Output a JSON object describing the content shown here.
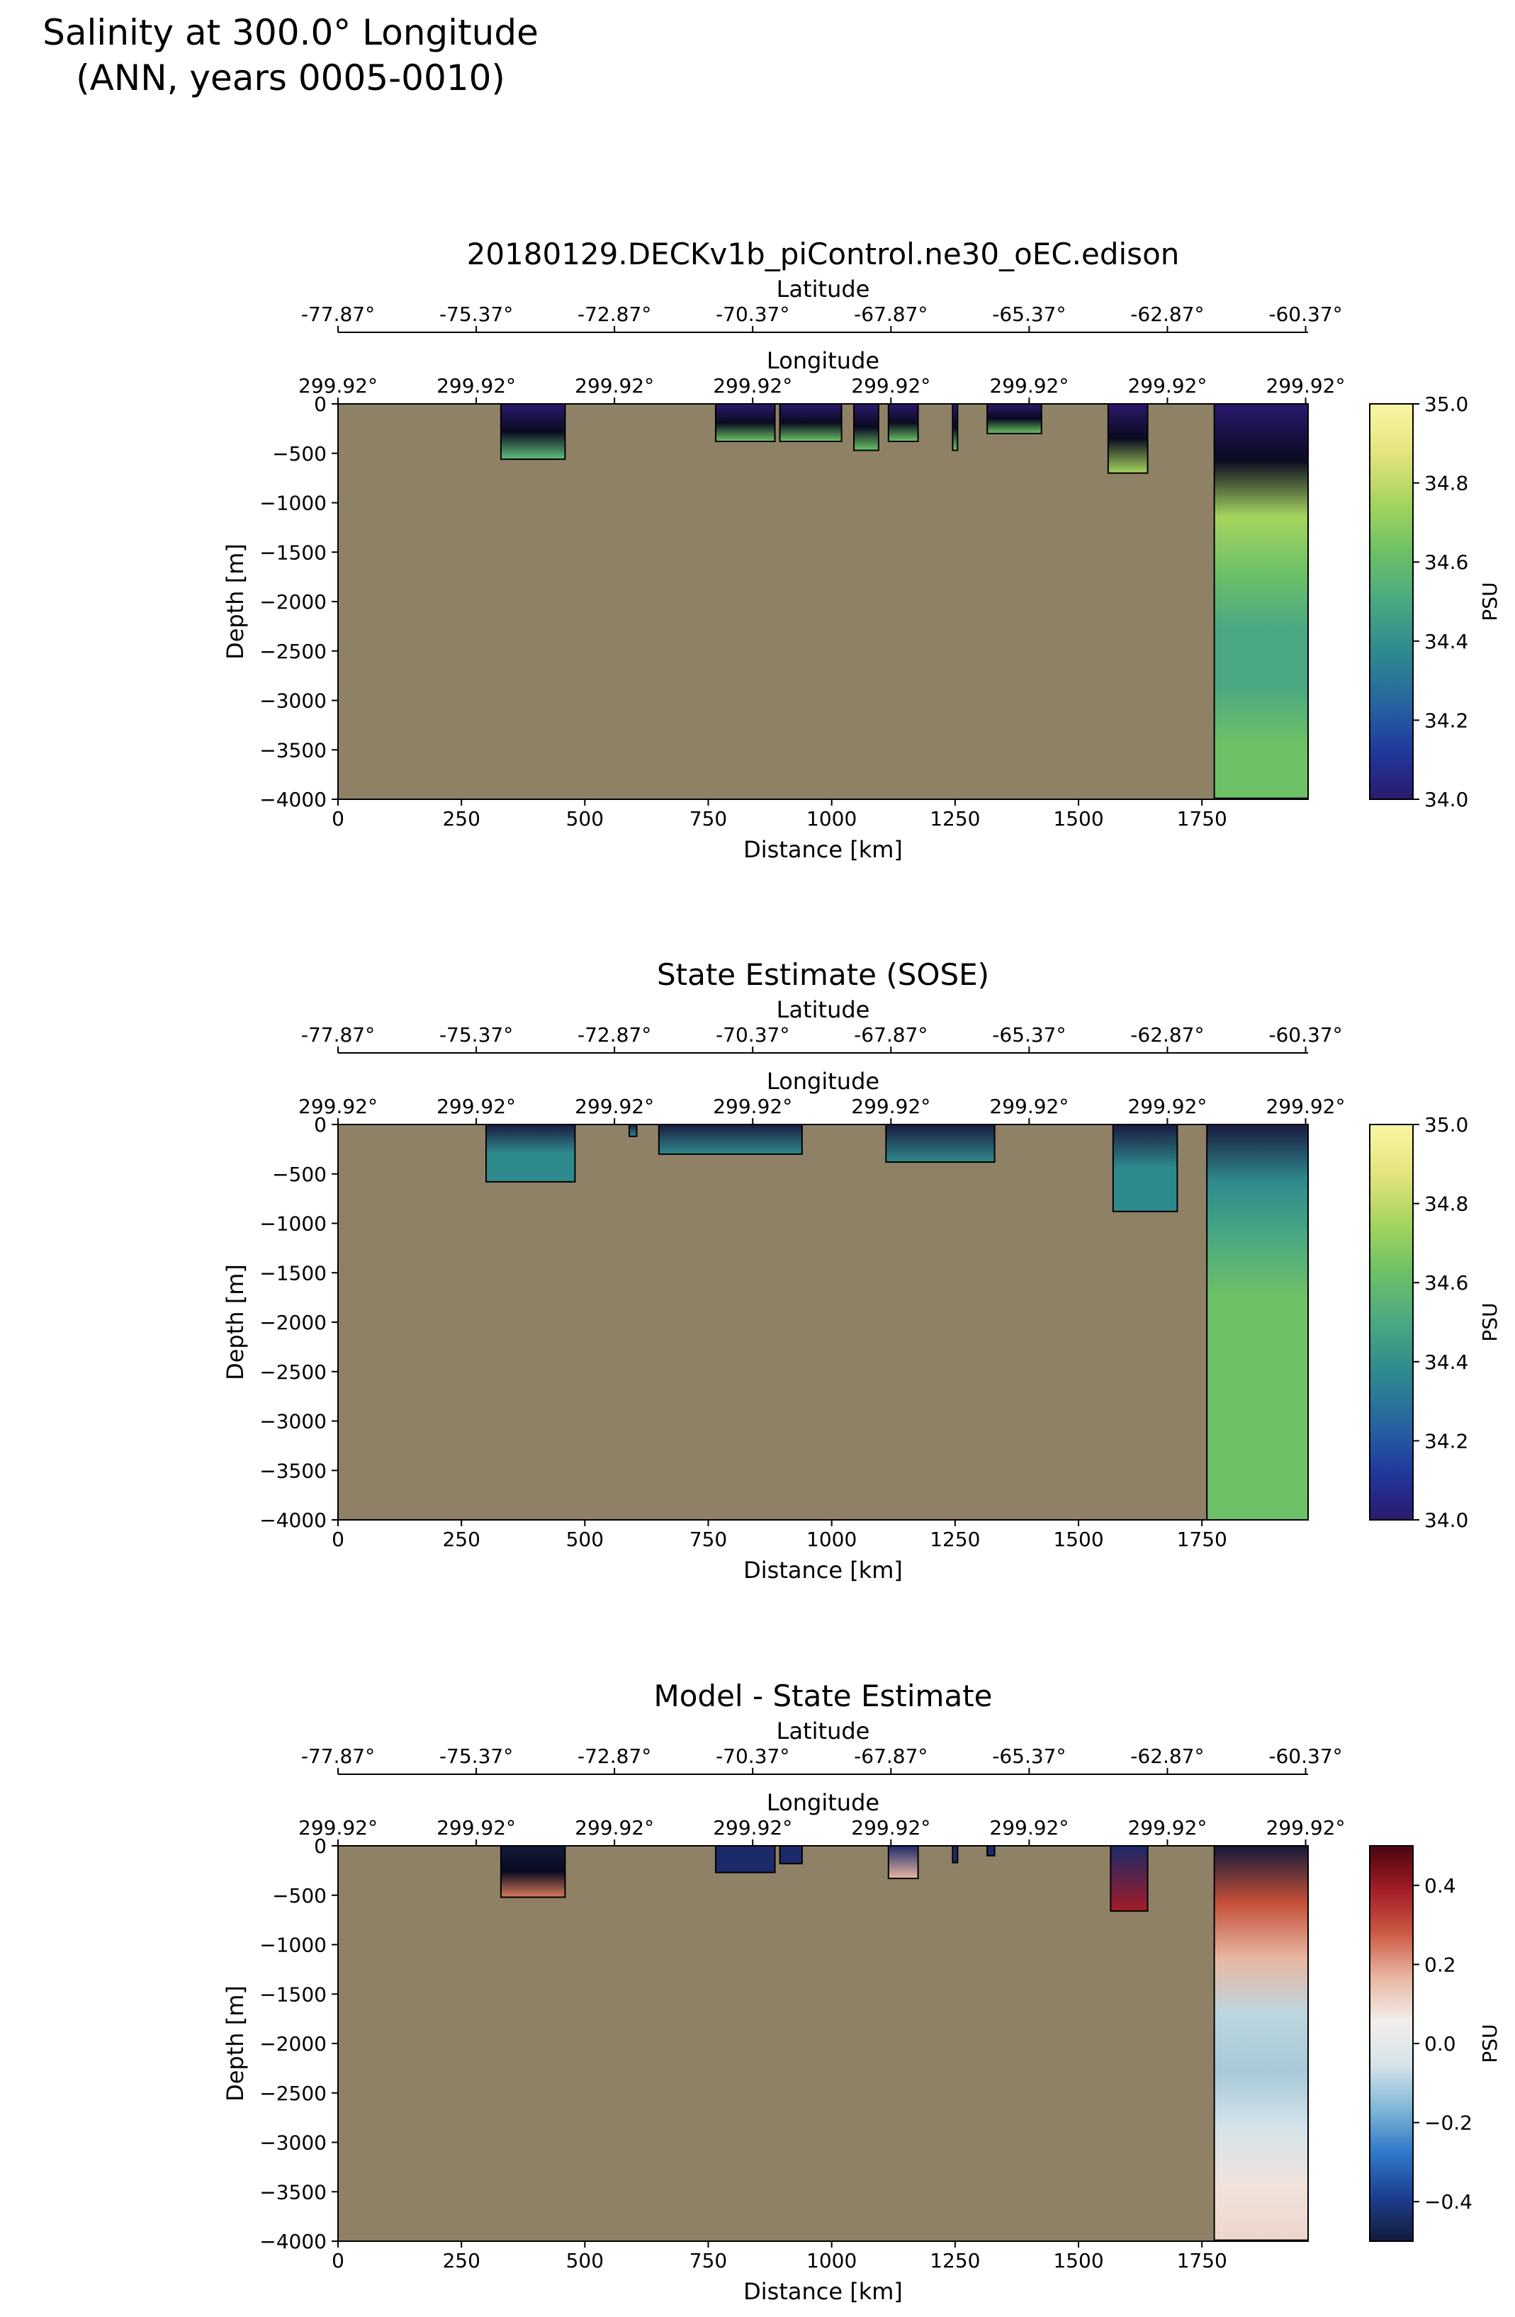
{
  "figure": {
    "title_line1": "Salinity at 300.0° Longitude",
    "title_line2": "(ANN, years 0005-0010)"
  },
  "colors": {
    "land": "#8f8166",
    "axis": "#000000"
  },
  "chart_data": [
    {
      "type": "heatmap",
      "panel": "model",
      "title": "20180129.DECKv1b_piControl.ne30_oEC.edison",
      "xlabel": "Distance [km]",
      "ylabel": "Depth [m]",
      "xlim": [
        0,
        1965
      ],
      "ylim": [
        -4000,
        0
      ],
      "xticks": [
        0,
        250,
        500,
        750,
        1000,
        1250,
        1500,
        1750
      ],
      "yticks": [
        0,
        -500,
        -1000,
        -1500,
        -2000,
        -2500,
        -3000,
        -3500,
        -4000
      ],
      "lat_axis_label": "Latitude",
      "lat_ticks": [
        "-77.87°",
        "-75.37°",
        "-72.87°",
        "-70.37°",
        "-67.87°",
        "-65.37°",
        "-62.87°",
        "-60.37°"
      ],
      "lat_tick_km": [
        0,
        280,
        560,
        840,
        1120,
        1400,
        1680,
        1960
      ],
      "lon_axis_label": "Longitude",
      "lon_ticks": [
        "299.92°",
        "299.92°",
        "299.92°",
        "299.92°",
        "299.92°",
        "299.92°",
        "299.92°",
        "299.92°"
      ],
      "colorbar": {
        "label": "PSU",
        "range": [
          34.0,
          35.0
        ],
        "ticks": [
          "35.0",
          "34.8",
          "34.6",
          "34.4",
          "34.2",
          "34.0"
        ],
        "tick_values": [
          35.0,
          34.8,
          34.6,
          34.4,
          34.2,
          34.0
        ],
        "stops": [
          "#2a1a6e",
          "#213a9e",
          "#2668a0",
          "#2f8a8e",
          "#4aa882",
          "#6cc066",
          "#a6d45e",
          "#e4e47e",
          "#fbf5a4"
        ]
      },
      "water_regions": [
        {
          "x": [
            330,
            460
          ],
          "depth": [
            0,
            560
          ],
          "colors": [
            "#2a1a6e",
            "#0a0a20",
            "#5fbf7c"
          ]
        },
        {
          "x": [
            765,
            885
          ],
          "depth": [
            0,
            380
          ],
          "colors": [
            "#2a1a6e",
            "#0a0a20",
            "#6cc466"
          ]
        },
        {
          "x": [
            895,
            1020
          ],
          "depth": [
            0,
            380
          ],
          "colors": [
            "#2a1a6e",
            "#0a0a20",
            "#6cc466"
          ]
        },
        {
          "x": [
            1045,
            1095
          ],
          "depth": [
            0,
            470
          ],
          "colors": [
            "#2a1a6e",
            "#0a0a20",
            "#6cc466"
          ]
        },
        {
          "x": [
            1115,
            1175
          ],
          "depth": [
            0,
            380
          ],
          "colors": [
            "#2a1a6e",
            "#0a0a20",
            "#6cc466"
          ]
        },
        {
          "x": [
            1245,
            1255
          ],
          "depth": [
            0,
            470
          ],
          "colors": [
            "#2a1a6e",
            "#0a0a20",
            "#6cc466"
          ]
        },
        {
          "x": [
            1315,
            1425
          ],
          "depth": [
            0,
            300
          ],
          "colors": [
            "#2a1a6e",
            "#0a0a20",
            "#6cc466"
          ]
        },
        {
          "x": [
            1560,
            1640
          ],
          "depth": [
            0,
            700
          ],
          "colors": [
            "#2a1a6e",
            "#0a0a20",
            "#a6d45e"
          ]
        },
        {
          "x": [
            1775,
            1965
          ],
          "depth": [
            0,
            3990
          ],
          "colors": [
            "#2a1a6e",
            "#0a0a20",
            "#a6d45e",
            "#6cc066",
            "#4aa882",
            "#4aa882",
            "#6cc066",
            "#6cc066"
          ]
        }
      ]
    },
    {
      "type": "heatmap",
      "panel": "obs",
      "title": "State Estimate (SOSE)",
      "xlabel": "Distance [km]",
      "ylabel": "Depth [m]",
      "xlim": [
        0,
        1965
      ],
      "ylim": [
        -4000,
        0
      ],
      "xticks": [
        0,
        250,
        500,
        750,
        1000,
        1250,
        1500,
        1750
      ],
      "yticks": [
        0,
        -500,
        -1000,
        -1500,
        -2000,
        -2500,
        -3000,
        -3500,
        -4000
      ],
      "lat_axis_label": "Latitude",
      "lat_ticks": [
        "-77.87°",
        "-75.37°",
        "-72.87°",
        "-70.37°",
        "-67.87°",
        "-65.37°",
        "-62.87°",
        "-60.37°"
      ],
      "lat_tick_km": [
        0,
        280,
        560,
        840,
        1120,
        1400,
        1680,
        1960
      ],
      "lon_axis_label": "Longitude",
      "lon_ticks": [
        "299.92°",
        "299.92°",
        "299.92°",
        "299.92°",
        "299.92°",
        "299.92°",
        "299.92°",
        "299.92°"
      ],
      "colorbar": {
        "label": "PSU",
        "range": [
          34.0,
          35.0
        ],
        "ticks": [
          "35.0",
          "34.8",
          "34.6",
          "34.4",
          "34.2",
          "34.0"
        ],
        "tick_values": [
          35.0,
          34.8,
          34.6,
          34.4,
          34.2,
          34.0
        ],
        "stops": [
          "#2a1a6e",
          "#213a9e",
          "#2668a0",
          "#2f8a8e",
          "#4aa882",
          "#6cc066",
          "#a6d45e",
          "#e4e47e",
          "#fbf5a4"
        ]
      },
      "water_regions": [
        {
          "x": [
            300,
            480
          ],
          "depth": [
            0,
            580
          ],
          "colors": [
            "#1a1a40",
            "#2f8a8e",
            "#2f8a8e"
          ]
        },
        {
          "x": [
            590,
            605
          ],
          "depth": [
            0,
            120
          ],
          "colors": [
            "#1a1a40",
            "#2f8a8e"
          ]
        },
        {
          "x": [
            650,
            940
          ],
          "depth": [
            0,
            300
          ],
          "colors": [
            "#1a1a40",
            "#2f8a8e"
          ]
        },
        {
          "x": [
            1110,
            1330
          ],
          "depth": [
            0,
            380
          ],
          "colors": [
            "#1a1a40",
            "#2f8a8e"
          ]
        },
        {
          "x": [
            1570,
            1700
          ],
          "depth": [
            0,
            880
          ],
          "colors": [
            "#1a1a40",
            "#2f8a8e",
            "#2f8a8e"
          ]
        },
        {
          "x": [
            1760,
            1965
          ],
          "depth": [
            0,
            4000
          ],
          "colors": [
            "#1a1a40",
            "#2f8a8e",
            "#4aa882",
            "#6cc066",
            "#6cc066",
            "#6cc066",
            "#6cc066",
            "#6cc066"
          ]
        }
      ]
    },
    {
      "type": "heatmap",
      "panel": "bias",
      "title": "Model - State Estimate",
      "xlabel": "Distance [km]",
      "ylabel": "Depth [m]",
      "xlim": [
        0,
        1965
      ],
      "ylim": [
        -4000,
        0
      ],
      "xticks": [
        0,
        250,
        500,
        750,
        1000,
        1250,
        1500,
        1750
      ],
      "yticks": [
        0,
        -500,
        -1000,
        -1500,
        -2000,
        -2500,
        -3000,
        -3500,
        -4000
      ],
      "lat_axis_label": "Latitude",
      "lat_ticks": [
        "-77.87°",
        "-75.37°",
        "-72.87°",
        "-70.37°",
        "-67.87°",
        "-65.37°",
        "-62.87°",
        "-60.37°"
      ],
      "lat_tick_km": [
        0,
        280,
        560,
        840,
        1120,
        1400,
        1680,
        1960
      ],
      "lon_axis_label": "Longitude",
      "lon_ticks": [
        "299.92°",
        "299.92°",
        "299.92°",
        "299.92°",
        "299.92°",
        "299.92°",
        "299.92°",
        "299.92°"
      ],
      "colorbar": {
        "label": "PSU",
        "range": [
          -0.5,
          0.5
        ],
        "ticks": [
          "0.4",
          "0.2",
          "0.0",
          "−0.2",
          "−0.4"
        ],
        "tick_values": [
          0.4,
          0.2,
          0.0,
          -0.2,
          -0.4
        ],
        "stops": [
          "#131a3a",
          "#1d3f8f",
          "#2e78c8",
          "#7fb6d6",
          "#d4e3ea",
          "#f2eeea",
          "#e8b7a2",
          "#cc5b45",
          "#a21c27",
          "#4a0611"
        ]
      },
      "water_regions": [
        {
          "x": [
            330,
            460
          ],
          "depth": [
            0,
            520
          ],
          "colors": [
            "#131a3a",
            "#0a0a20",
            "#d97a5c"
          ]
        },
        {
          "x": [
            765,
            885
          ],
          "depth": [
            0,
            270
          ],
          "colors": [
            "#1d2a6a"
          ]
        },
        {
          "x": [
            895,
            940
          ],
          "depth": [
            0,
            180
          ],
          "colors": [
            "#1d2a6a"
          ]
        },
        {
          "x": [
            1115,
            1175
          ],
          "depth": [
            0,
            330
          ],
          "colors": [
            "#1d2a6a",
            "#e8b7a2"
          ]
        },
        {
          "x": [
            1245,
            1255
          ],
          "depth": [
            0,
            170
          ],
          "colors": [
            "#1d2a6a"
          ]
        },
        {
          "x": [
            1315,
            1330
          ],
          "depth": [
            0,
            100
          ],
          "colors": [
            "#1d2a6a"
          ]
        },
        {
          "x": [
            1565,
            1640
          ],
          "depth": [
            0,
            660
          ],
          "colors": [
            "#1d2a6a",
            "#a21c27"
          ]
        },
        {
          "x": [
            1775,
            1965
          ],
          "depth": [
            0,
            3990
          ],
          "colors": [
            "#131a3a",
            "#c44e38",
            "#e8b7a2",
            "#bcd6e0",
            "#a7c9d8",
            "#d4e3ea",
            "#f0e2dc",
            "#eed6cc"
          ]
        }
      ]
    }
  ]
}
